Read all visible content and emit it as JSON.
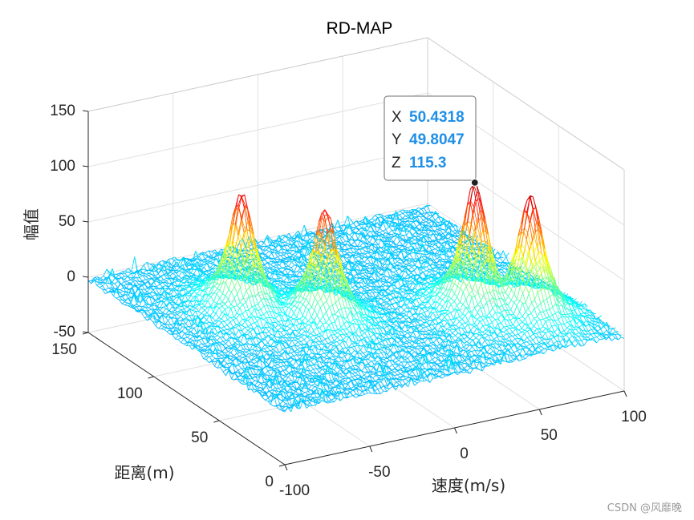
{
  "chart_data": {
    "type": "mesh3d",
    "title": "RD-MAP",
    "xlabel": "速度(m/s)",
    "ylabel": "距离(m)",
    "zlabel": "幅值",
    "xlim": [
      -100,
      100
    ],
    "ylim": [
      0,
      150
    ],
    "zlim": [
      -50,
      150
    ],
    "xticks": [
      "-100",
      "-50",
      "0",
      "50",
      "100"
    ],
    "yticks": [
      "0",
      "50",
      "100",
      "150"
    ],
    "zticks": [
      "-50",
      "0",
      "50",
      "100",
      "150"
    ],
    "grid": true,
    "colormap": "jet",
    "noise_floor": -5,
    "peaks": [
      {
        "x": -52,
        "y": 95,
        "z": 105
      },
      {
        "x": -22,
        "y": 70,
        "z": 100
      },
      {
        "x": 50.4318,
        "y": 49.8047,
        "z": 115.3
      },
      {
        "x": 72,
        "y": 35,
        "z": 110
      }
    ],
    "datatip": {
      "x_key": "X",
      "x_value": "50.4318",
      "y_key": "Y",
      "y_value": "49.8047",
      "z_key": "Z",
      "z_value": "115.3"
    }
  },
  "watermark": "CSDN @风靡晚"
}
